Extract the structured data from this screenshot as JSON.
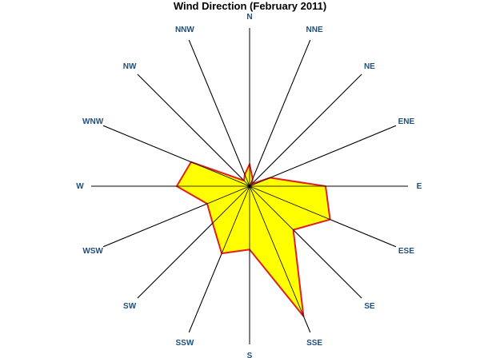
{
  "chart_data": {
    "type": "radar",
    "title": "Wind Direction (February 2011)",
    "directions": [
      "N",
      "NNE",
      "NE",
      "ENE",
      "E",
      "ESE",
      "SE",
      "SSE",
      "S",
      "SSW",
      "SW",
      "WSW",
      "W",
      "WNW",
      "NW",
      "NNW"
    ],
    "series": [
      {
        "values": [
          14,
          5,
          2,
          14,
          48,
          55,
          39,
          89,
          40,
          46,
          33,
          29,
          46,
          40,
          5,
          8
        ],
        "fill": "#ffff00",
        "stroke": "#e02020"
      }
    ],
    "rmax": 100,
    "grid": "spokes-only",
    "legend": "none"
  }
}
